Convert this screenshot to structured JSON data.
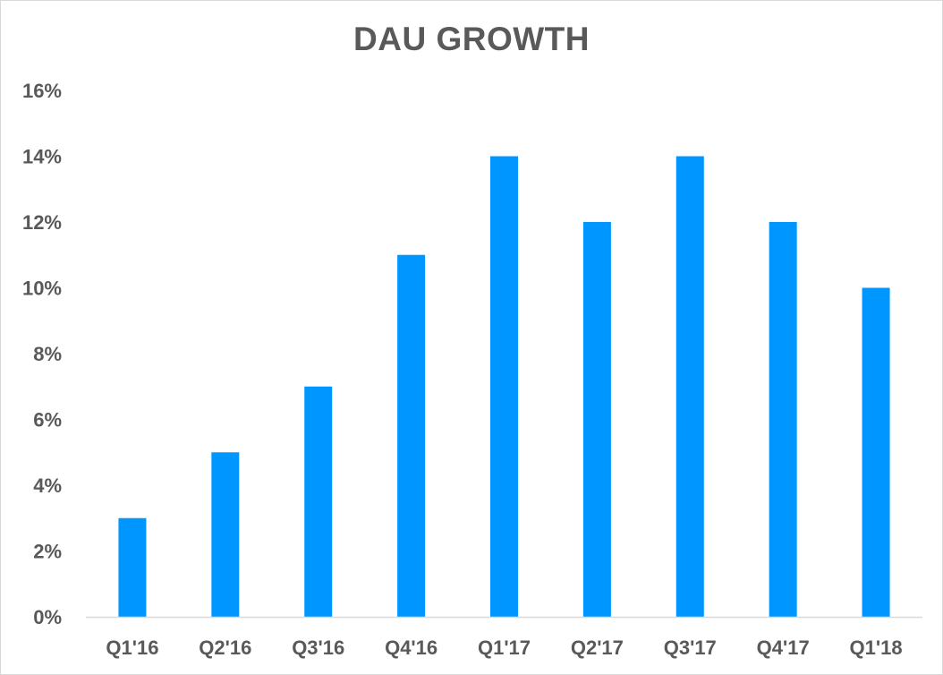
{
  "chart_data": {
    "type": "bar",
    "title": "DAU GROWTH",
    "categories": [
      "Q1'16",
      "Q2'16",
      "Q3'16",
      "Q4'16",
      "Q1'17",
      "Q2'17",
      "Q3'17",
      "Q4'17",
      "Q1'18"
    ],
    "values": [
      3,
      5,
      7,
      11,
      14,
      12,
      14,
      12,
      10
    ],
    "ylim": [
      0,
      16
    ],
    "yticks": [
      0,
      2,
      4,
      6,
      8,
      10,
      12,
      14,
      16
    ],
    "ytick_labels": [
      "0%",
      "2%",
      "4%",
      "6%",
      "8%",
      "10%",
      "12%",
      "14%",
      "16%"
    ],
    "xlabel": "",
    "ylabel": "",
    "grid": false,
    "legend": "none",
    "bar_color": "#0096ff",
    "axis_color": "#d9d9d9",
    "text_color": "#595959"
  }
}
